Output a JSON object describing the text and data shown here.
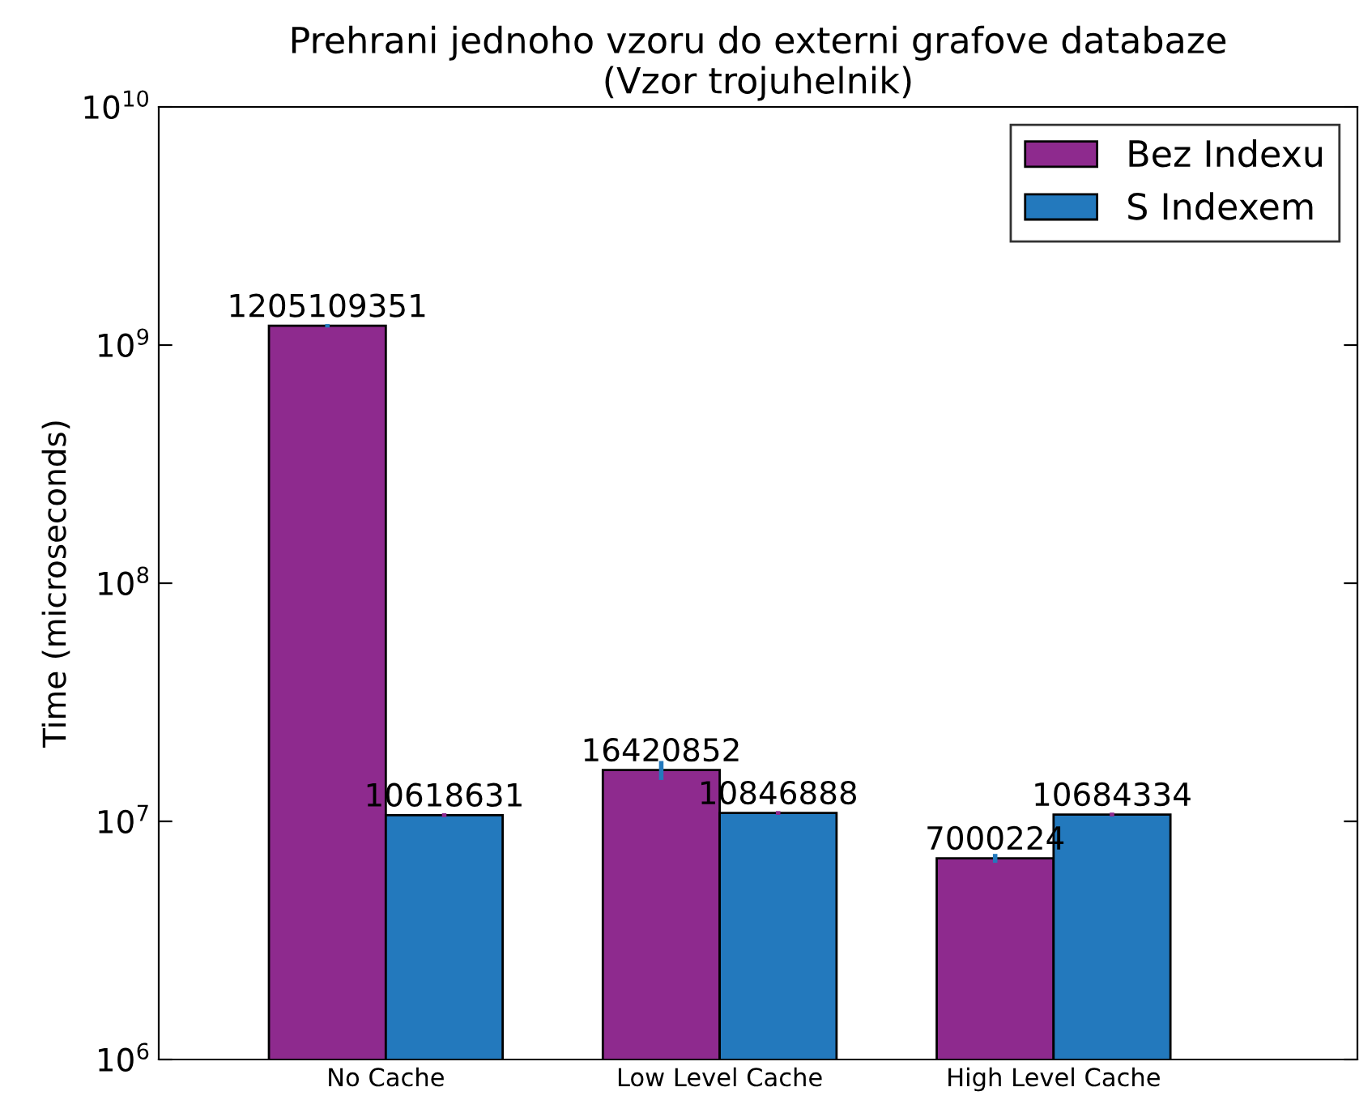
{
  "chart_data": {
    "type": "bar",
    "title": "Prehrani jednoho vzoru do externi grafove databaze\n(Vzor trojuhelnik)",
    "ylabel": "Time (microseconds)",
    "categories": [
      "No Cache",
      "Low Level Cache",
      "High Level Cache"
    ],
    "series": [
      {
        "name": "Bez Indexu",
        "color": "#8e2a8e",
        "values": [
          1205109351,
          16420852,
          7000224
        ],
        "errors": [
          20000000,
          1500000,
          300000
        ]
      },
      {
        "name": "S Indexem",
        "color": "#2379bd",
        "values": [
          10618631,
          10846888,
          10684334
        ],
        "errors": [
          200000,
          200000,
          200000
        ]
      }
    ],
    "log": "y",
    "ylim": [
      1000000,
      10000000000
    ],
    "yticks": [
      {
        "value": 1000000,
        "label": "10$^{6}$"
      },
      {
        "value": 10000000,
        "label": "10$^{7}$"
      },
      {
        "value": 100000000,
        "label": "10$^{8}$"
      },
      {
        "value": 1000000000,
        "label": "10$^{9}$"
      },
      {
        "value": 10000000000,
        "label": "10$^{10}$"
      }
    ],
    "data_labels": true,
    "legend": "top right",
    "grid": false
  }
}
